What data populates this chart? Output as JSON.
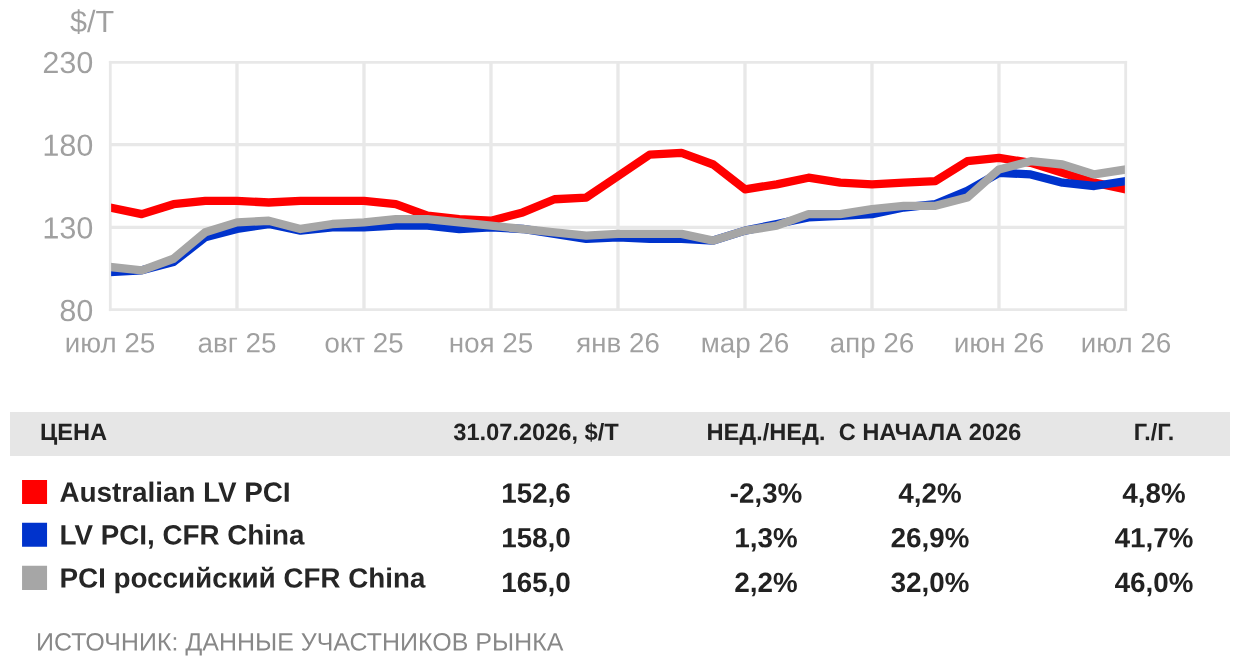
{
  "chart_data": {
    "type": "line",
    "ylabel": "$/Т",
    "categories": [
      "июл 25",
      null,
      null,
      null,
      "авг 25",
      null,
      null,
      null,
      "окт 25",
      null,
      null,
      null,
      "ноя 25",
      null,
      null,
      null,
      "янв 26",
      null,
      null,
      null,
      "мар 26",
      null,
      null,
      null,
      "апр 26",
      null,
      null,
      null,
      "июн 26",
      null,
      null,
      null,
      "июл 26"
    ],
    "ylim": [
      80,
      230
    ],
    "yticks": [
      80,
      130,
      180,
      230
    ],
    "grid": true,
    "legend": "bottom left",
    "line_style": "solid",
    "marker": "none",
    "series": [
      {
        "name": "Australian LV PCI",
        "color": "#ff0000",
        "values": [
          142,
          138,
          144,
          146,
          146,
          145,
          146,
          146,
          146,
          144,
          137,
          135,
          134,
          139,
          147,
          148,
          161,
          174,
          175,
          168,
          153,
          156,
          160,
          157,
          156,
          157,
          158,
          170,
          172,
          169,
          163,
          157,
          153
        ]
      },
      {
        "name": "LV PCI, CFR China",
        "color": "#0033cc",
        "values": [
          103,
          104,
          109,
          124,
          129,
          132,
          128,
          130,
          130,
          131,
          131,
          129,
          130,
          129,
          126,
          123,
          124,
          123,
          123,
          122,
          128,
          132,
          136,
          137,
          138,
          142,
          144,
          152,
          163,
          162,
          157,
          155,
          158
        ]
      },
      {
        "name": "PCI российский CFR China",
        "color": "#a6a6a6",
        "values": [
          106,
          104,
          111,
          127,
          133,
          134,
          129,
          132,
          133,
          135,
          135,
          133,
          131,
          129,
          127,
          125,
          126,
          126,
          126,
          122,
          128,
          131,
          138,
          138,
          141,
          143,
          143,
          148,
          165,
          170,
          168,
          162,
          165
        ]
      }
    ],
    "annotations": [
      "ЦЕНА",
      "31.07.2026, $/Т",
      "НЕД./НЕД.",
      "С НАЧАЛА 2026",
      "Г./Г.",
      "152,6",
      "-2,3%",
      "4,2%",
      "4,8%",
      "158,0",
      "1,3%",
      "26,9%",
      "41,7%",
      "165,0",
      "2,2%",
      "32,0%",
      "46,0%",
      "ИСТОЧНИК: ДАННЫЕ УЧАСТНИКОВ РЫНКА"
    ]
  }
}
